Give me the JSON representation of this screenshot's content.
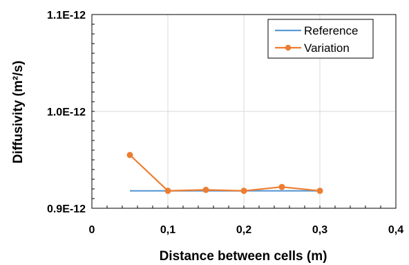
{
  "chart_data": {
    "type": "line",
    "xlabel": "Distance between cells (m)",
    "ylabel": "Diffusivity  (m²/s)",
    "xlim": [
      0,
      0.4
    ],
    "ylim": [
      9e-13,
      1.1e-12
    ],
    "x_ticks": [
      0,
      0.1,
      0.2,
      0.3,
      0.4
    ],
    "x_tick_labels": [
      "0",
      "0,1",
      "0,2",
      "0,3",
      "0,4"
    ],
    "y_ticks": [
      9e-13,
      1e-12,
      1.1e-12
    ],
    "y_tick_labels": [
      "0.9E-12",
      "1.0E-12",
      "1.1E-12"
    ],
    "grid": "vertical and horizontal major",
    "legend_position": "top-right",
    "series": [
      {
        "name": "Reference",
        "color": "#5B9BD5",
        "markers": false,
        "x": [
          0.05,
          0.1,
          0.15,
          0.2,
          0.25,
          0.3
        ],
        "y": [
          9.18e-13,
          9.18e-13,
          9.18e-13,
          9.18e-13,
          9.18e-13,
          9.18e-13
        ]
      },
      {
        "name": "Variation",
        "color": "#ED7D31",
        "markers": true,
        "x": [
          0.05,
          0.1,
          0.15,
          0.2,
          0.25,
          0.3
        ],
        "y": [
          9.55e-13,
          9.18e-13,
          9.19e-13,
          9.18e-13,
          9.22e-13,
          9.18e-13
        ]
      }
    ]
  }
}
